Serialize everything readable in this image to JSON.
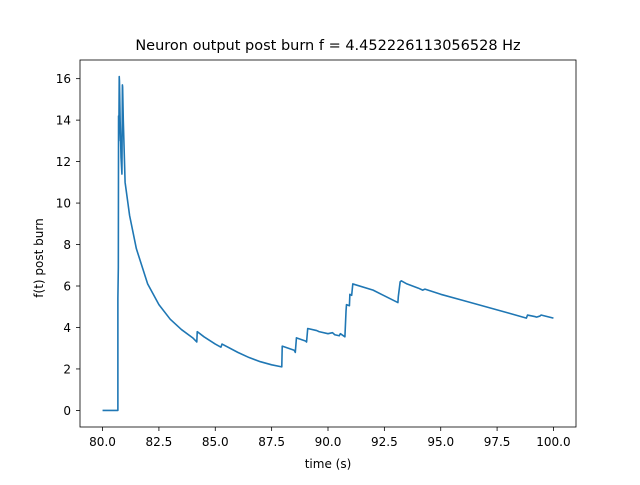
{
  "chart_data": {
    "type": "line",
    "title": "Neuron output post burn f = 4.452226113056528 Hz",
    "xlabel": "time (s)",
    "ylabel": "f(t) post burn",
    "xlim": [
      79.0,
      101.0
    ],
    "ylim": [
      -0.8,
      16.9
    ],
    "x_ticks": [
      80.0,
      82.5,
      85.0,
      87.5,
      90.0,
      92.5,
      95.0,
      97.5,
      100.0
    ],
    "x_tick_labels": [
      "80.0",
      "82.5",
      "85.0",
      "87.5",
      "90.0",
      "92.5",
      "95.0",
      "97.5",
      "100.0"
    ],
    "y_ticks": [
      0,
      2,
      4,
      6,
      8,
      10,
      12,
      14,
      16
    ],
    "y_tick_labels": [
      "0",
      "2",
      "4",
      "6",
      "8",
      "10",
      "12",
      "14",
      "16"
    ],
    "grid": false,
    "line_color": "#1f77b4",
    "series": [
      {
        "x": [
          80.0,
          80.68,
          80.68,
          80.7,
          80.71,
          80.72,
          80.73,
          80.74,
          80.75,
          80.78,
          80.82,
          80.86,
          80.88,
          80.89,
          80.92,
          81.0,
          81.2,
          81.5,
          82.0,
          82.5,
          83.0,
          83.5,
          84.0,
          84.18,
          84.2,
          84.5,
          85.0,
          85.25,
          85.3,
          86.0,
          86.5,
          87.0,
          87.5,
          87.95,
          87.97,
          88.5,
          88.55,
          88.6,
          89.0,
          89.05,
          89.1,
          89.5,
          89.6,
          90.0,
          90.2,
          90.3,
          90.5,
          90.55,
          90.75,
          90.8,
          90.82,
          90.95,
          90.97,
          91.05,
          91.1,
          92.0,
          93.1,
          93.12,
          93.2,
          93.25,
          93.5,
          94.0,
          94.2,
          94.3,
          95.0,
          96.0,
          97.0,
          98.0,
          98.8,
          98.85,
          99.2,
          99.25,
          99.4,
          99.45,
          99.6,
          100.0
        ],
        "y": [
          0.0,
          0.0,
          5.4,
          6.9,
          14.2,
          13.0,
          14.3,
          16.1,
          15.9,
          14.0,
          12.2,
          11.4,
          15.7,
          15.6,
          14.0,
          11.0,
          9.4,
          7.8,
          6.1,
          5.1,
          4.4,
          3.9,
          3.5,
          3.3,
          3.8,
          3.55,
          3.2,
          3.05,
          3.2,
          2.8,
          2.55,
          2.35,
          2.2,
          2.1,
          3.1,
          2.9,
          2.8,
          3.5,
          3.35,
          3.3,
          3.95,
          3.85,
          3.8,
          3.7,
          3.75,
          3.65,
          3.6,
          3.7,
          3.55,
          4.8,
          5.1,
          5.05,
          5.6,
          5.55,
          6.1,
          5.8,
          5.2,
          5.5,
          6.2,
          6.25,
          6.1,
          5.9,
          5.8,
          5.85,
          5.6,
          5.3,
          5.0,
          4.7,
          4.45,
          4.6,
          4.52,
          4.5,
          4.55,
          4.6,
          4.56,
          4.45
        ]
      }
    ]
  }
}
